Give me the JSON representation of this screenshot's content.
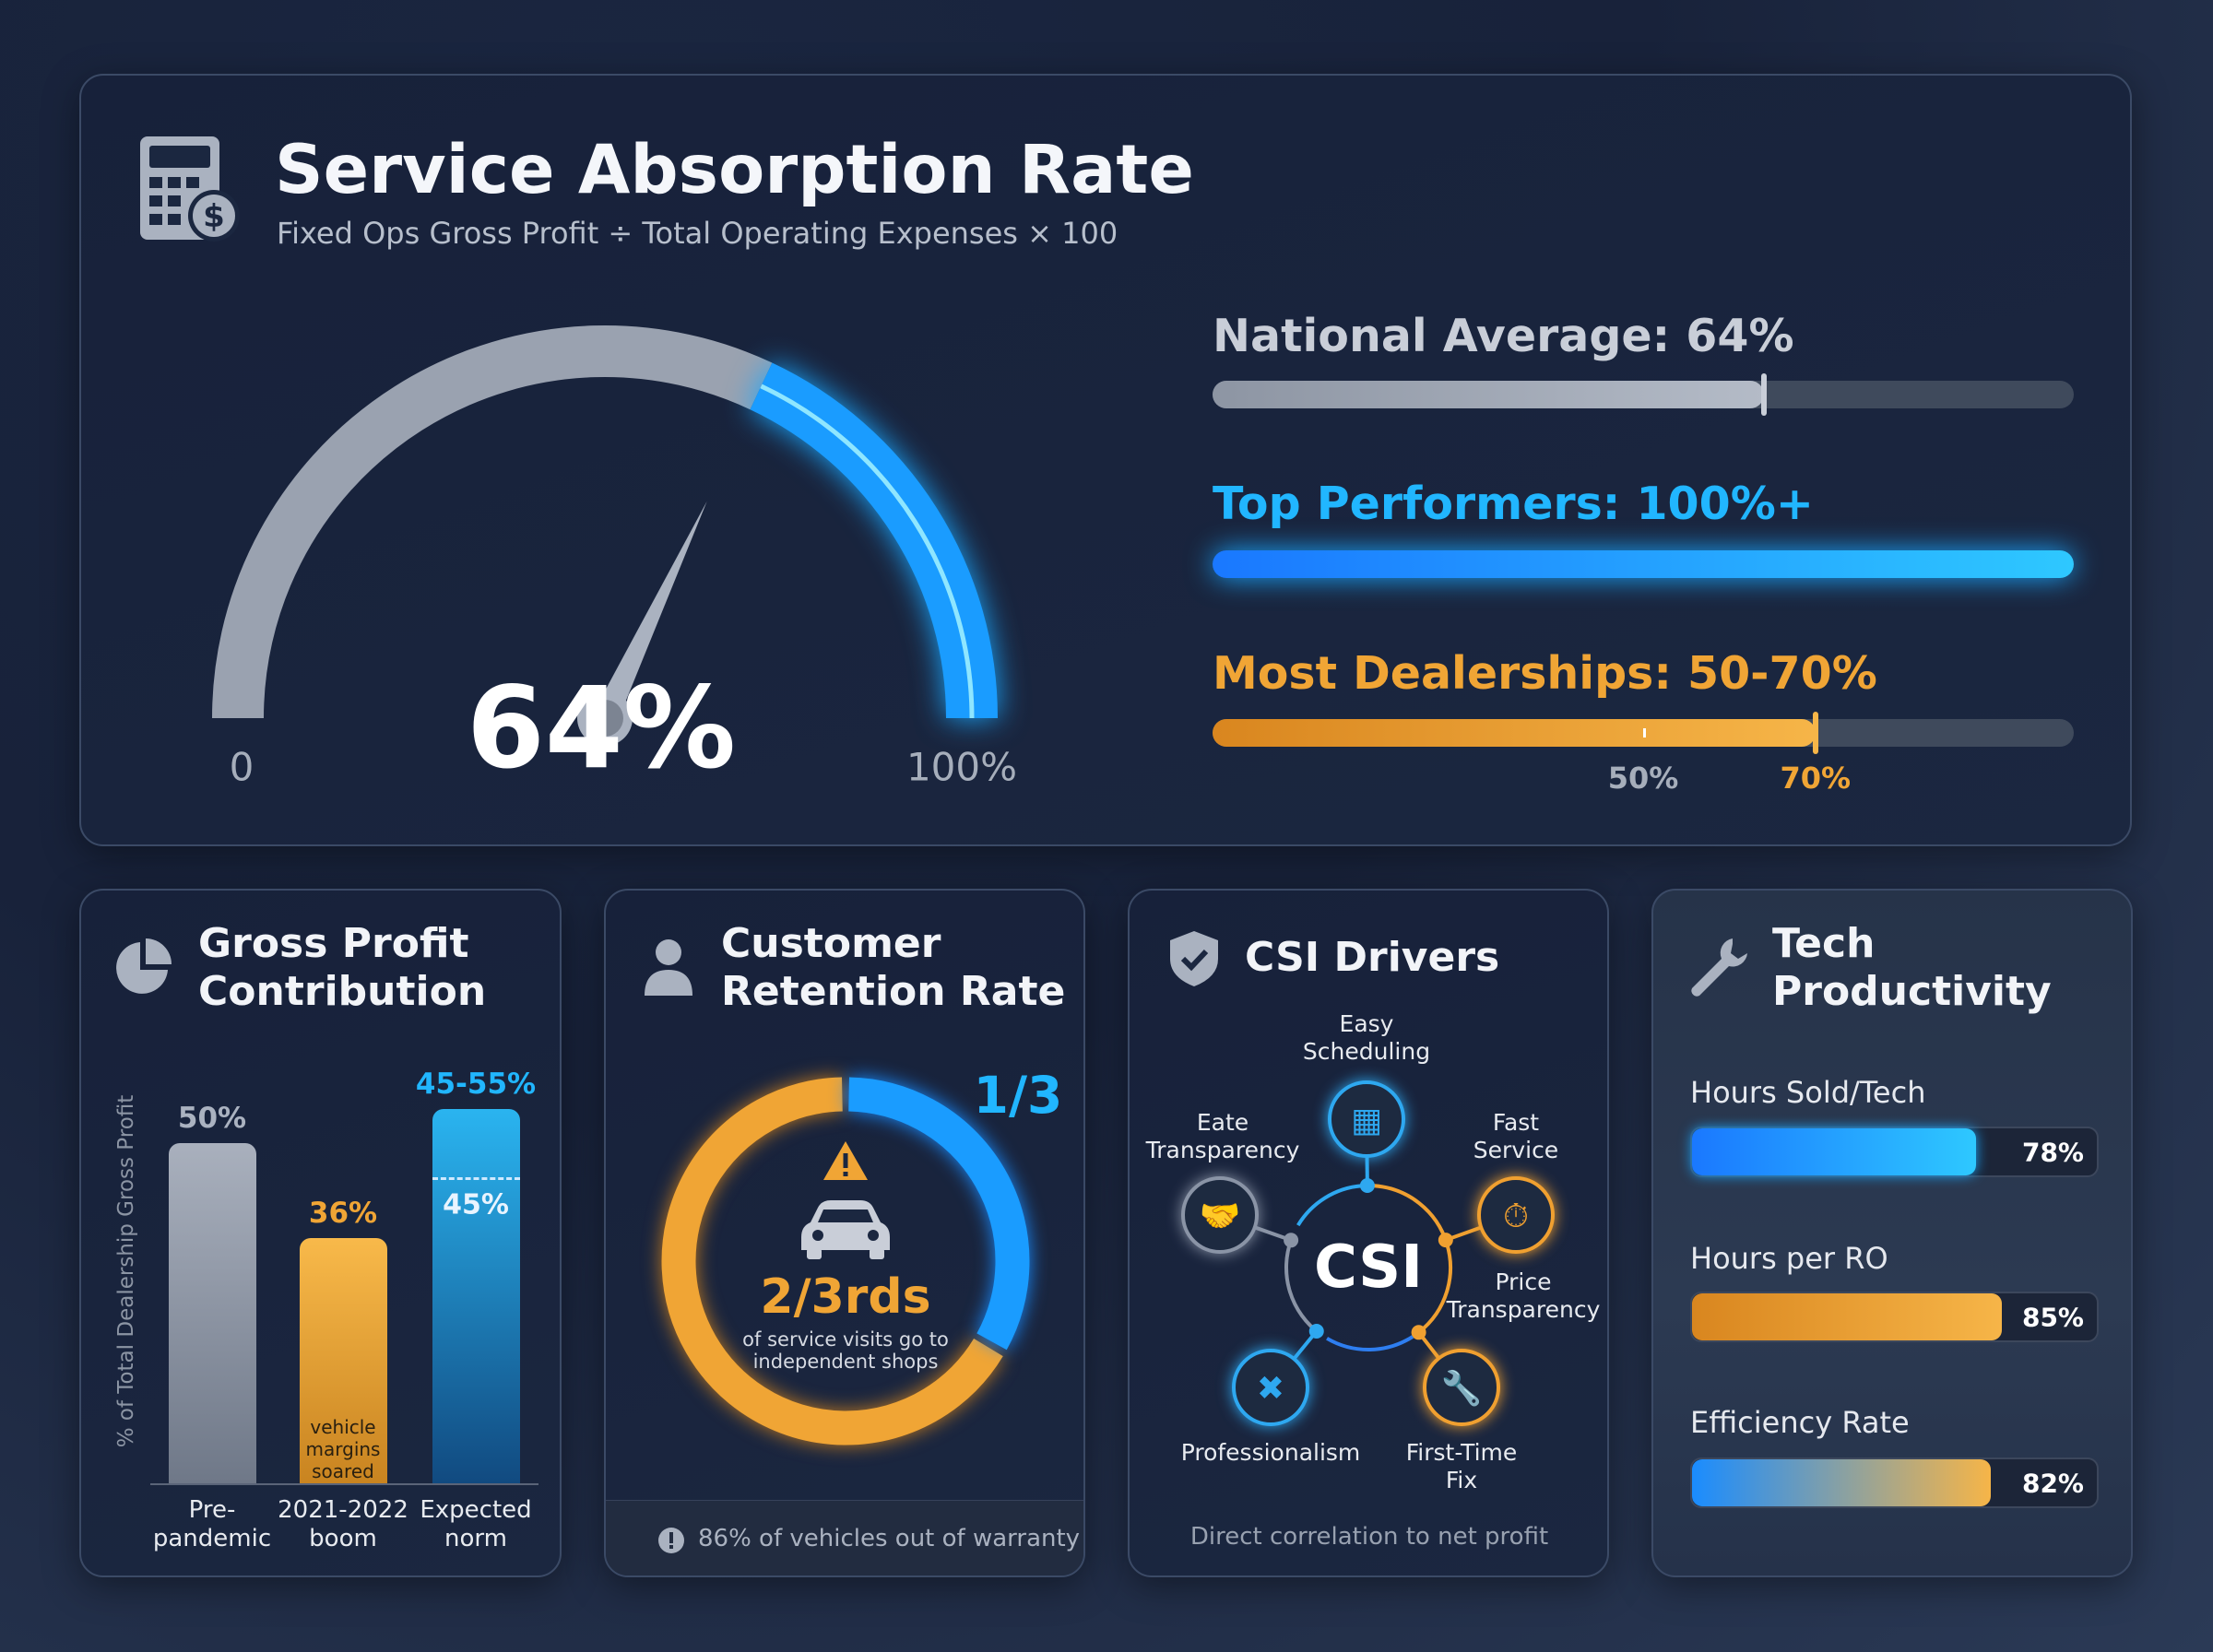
{
  "header": {
    "title": "Service Absorption Rate",
    "subtitle": "Fixed Ops Gross Profit ÷ Total Operating Expenses × 100",
    "icon": "calculator-dollar-icon"
  },
  "gauge": {
    "value": 64,
    "value_label": "64%",
    "min_label": "0",
    "max_label": "100%"
  },
  "benchmarks": [
    {
      "label": "National Average: 64%",
      "value": 64,
      "color": "#c9ced8"
    },
    {
      "label": "Top Performers: 100%+",
      "value": 100,
      "color": "#1fb4ff"
    },
    {
      "label": "Most Dealerships: 50-70%",
      "range": [
        50,
        70
      ],
      "color": "#f0a030",
      "tick_labels": [
        "50%",
        "70%"
      ]
    }
  ],
  "gross_profit": {
    "title_1": "Gross Profit",
    "title_2": "Contribution",
    "icon": "pie-chart-icon",
    "ylabel": "% of Total Dealership Gross Profit",
    "chart_data": {
      "type": "bar",
      "ylabel": "% of Total Dealership Gross Profit",
      "ylim": [
        0,
        60
      ],
      "categories": [
        [
          "Pre-",
          "pandemic"
        ],
        [
          "2021-2022",
          "boom"
        ],
        [
          "Expected",
          "norm"
        ]
      ],
      "values": [
        50,
        36,
        55
      ],
      "value_labels": [
        "50%",
        "36%",
        "45-55%"
      ],
      "inner_label": "45%",
      "range_low": 45,
      "annotation": [
        "vehicle",
        "margins",
        "soared"
      ]
    }
  },
  "retention": {
    "title_1": "Customer",
    "title_2": "Retention Rate",
    "icon": "person-icon",
    "fraction": 0.3333,
    "fraction_label": "1/3",
    "main": "2/3rds",
    "desc_1": "of service visits go to",
    "desc_2": "independent shops",
    "footer": "86% of vehicles out of warranty"
  },
  "csi": {
    "title": "CSI Drivers",
    "center": "CSI",
    "icon": "shield-check-icon",
    "footer": "Direct correlation to net profit",
    "drivers": [
      {
        "label_1": "Easy",
        "label_2": "Scheduling",
        "icon": "calendar-icon",
        "color": "#2ea8f0"
      },
      {
        "label_1": "Eate",
        "label_2": "Transparency",
        "icon": "handshake-icon",
        "color": "#8a94a6"
      },
      {
        "label_1": "Fast",
        "label_2": "Service",
        "icon": "stopwatch-icon",
        "color": "#f0a030"
      },
      {
        "label_1": "Price",
        "label_2": "Transparency"
      },
      {
        "label_1": "Professionalism",
        "label_2": "",
        "icon": "tools-icon",
        "color": "#2ea8f0"
      },
      {
        "label_1": "First-Time",
        "label_2": "Fix",
        "icon": "wrench-icon",
        "color": "#f0a030"
      }
    ]
  },
  "tech": {
    "title_1": "Tech",
    "title_2": "Productivity",
    "icon": "wrench-icon",
    "metrics": [
      {
        "label": "Hours Sold/Tech",
        "value": 78,
        "value_label": "78%"
      },
      {
        "label": "Hours per RO",
        "value": 85,
        "value_label": "85%"
      },
      {
        "label": "Efficiency Rate",
        "value": 82,
        "value_label": "82%"
      }
    ]
  }
}
